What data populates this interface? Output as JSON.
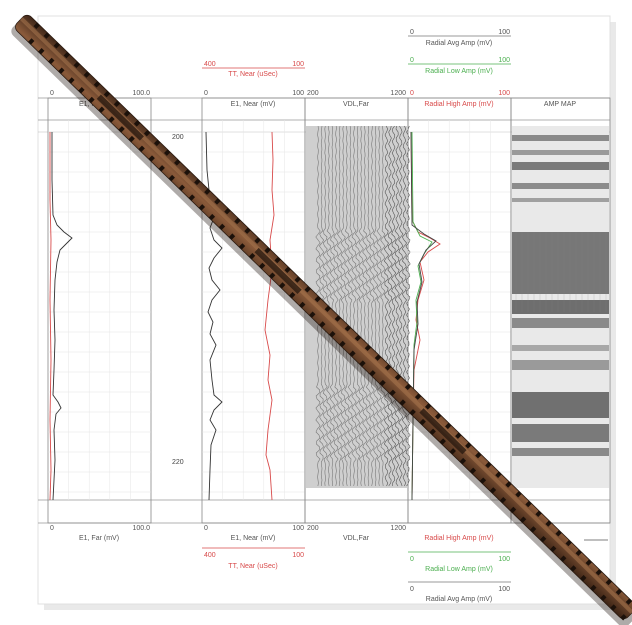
{
  "tracks": {
    "e1_far": {
      "label_top": "E1, Far (mV)",
      "label_bottom": "E1, Far (mV)",
      "scale_min": "0",
      "scale_max": "100.0"
    },
    "e1_near": {
      "label": "E1, Near (mV)",
      "scale_min": "0",
      "scale_max": "100",
      "tt_label": "TT, Near (uSec)",
      "tt_min": "400",
      "tt_max": "100"
    },
    "vdl_far": {
      "label": "VDL,Far",
      "scale_min": "200",
      "scale_max": "1200"
    },
    "radial": {
      "avg_label": "Radial Avg Amp (mV)",
      "low_label": "Radial Low Amp (mV)",
      "high_label": "Radial High Amp (mV)",
      "min": "0",
      "max": "100"
    },
    "amp_map": {
      "label": "AMP MAP"
    }
  },
  "depth_labels": [
    "200",
    "220"
  ],
  "colors": {
    "paper": "#ffffff",
    "grid": "#d8d8d8",
    "curve_black": "#333333",
    "curve_red": "#d84a4a",
    "curve_green": "#4caf50",
    "tool_brown": "#6b4128",
    "tool_dark": "#2a1a10",
    "vdl_bg": "#cfcfcf",
    "amp_dark": "#6e6e6e"
  }
}
